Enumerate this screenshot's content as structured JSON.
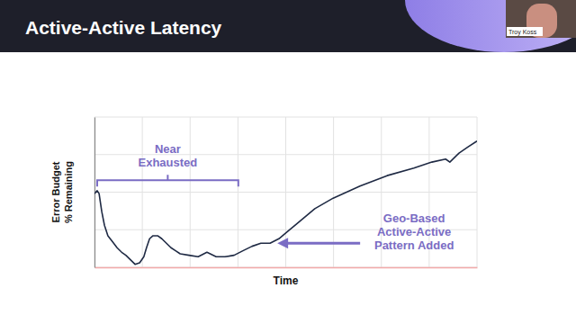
{
  "speaker": "Troy Koss",
  "chart_data": {
    "type": "line",
    "title": "Active-Active Latency",
    "x_label": "Time",
    "y_label": [
      "Error Budget",
      "% Remaining"
    ],
    "x": [
      0,
      0.7,
      1.2,
      1.9,
      2.6,
      3.5,
      4.7,
      5.9,
      7.1,
      8.2,
      9.4,
      10.6,
      11.8,
      12.9,
      13.6,
      14.4,
      15.3,
      16.5,
      17.6,
      18.8,
      20,
      21.2,
      22.4,
      24.7,
      27.1,
      29.4,
      31.8,
      34.1,
      36.5,
      38.8,
      41.2,
      43.5,
      45.9,
      48.2,
      52.9,
      57.6,
      62.4,
      69.4,
      76.5,
      83.5,
      88.2,
      91.8,
      92.9,
      95.3,
      97.6,
      100
    ],
    "values": [
      49,
      51,
      49,
      37,
      28,
      21,
      17,
      13,
      10,
      8,
      5,
      2,
      3,
      7,
      13,
      19,
      21,
      21,
      19,
      16,
      13,
      11,
      9,
      8,
      7,
      10,
      7,
      7,
      8,
      11,
      14,
      16,
      16,
      19,
      29,
      39,
      46,
      54,
      61,
      66,
      70,
      72,
      70,
      76,
      80,
      84
    ],
    "color": "#1f2a44",
    "xlim": [
      0,
      100
    ],
    "xticks": [
      0,
      12.5,
      25,
      37.5,
      50,
      62.5,
      75,
      87.5,
      100
    ],
    "ylim": [
      0,
      100
    ],
    "yticks": [
      0,
      25,
      50,
      75,
      100
    ],
    "grid": true,
    "tick_labels": false,
    "annotations": [
      {
        "text": [
          "Near",
          "Exhausted"
        ],
        "x": [
          0.7,
          37.6
        ],
        "y": 58
      },
      {
        "text": [
          "Geo-Based",
          "Active-Active",
          "Pattern Added"
        ],
        "x": 47.8,
        "y": 16
      }
    ]
  }
}
